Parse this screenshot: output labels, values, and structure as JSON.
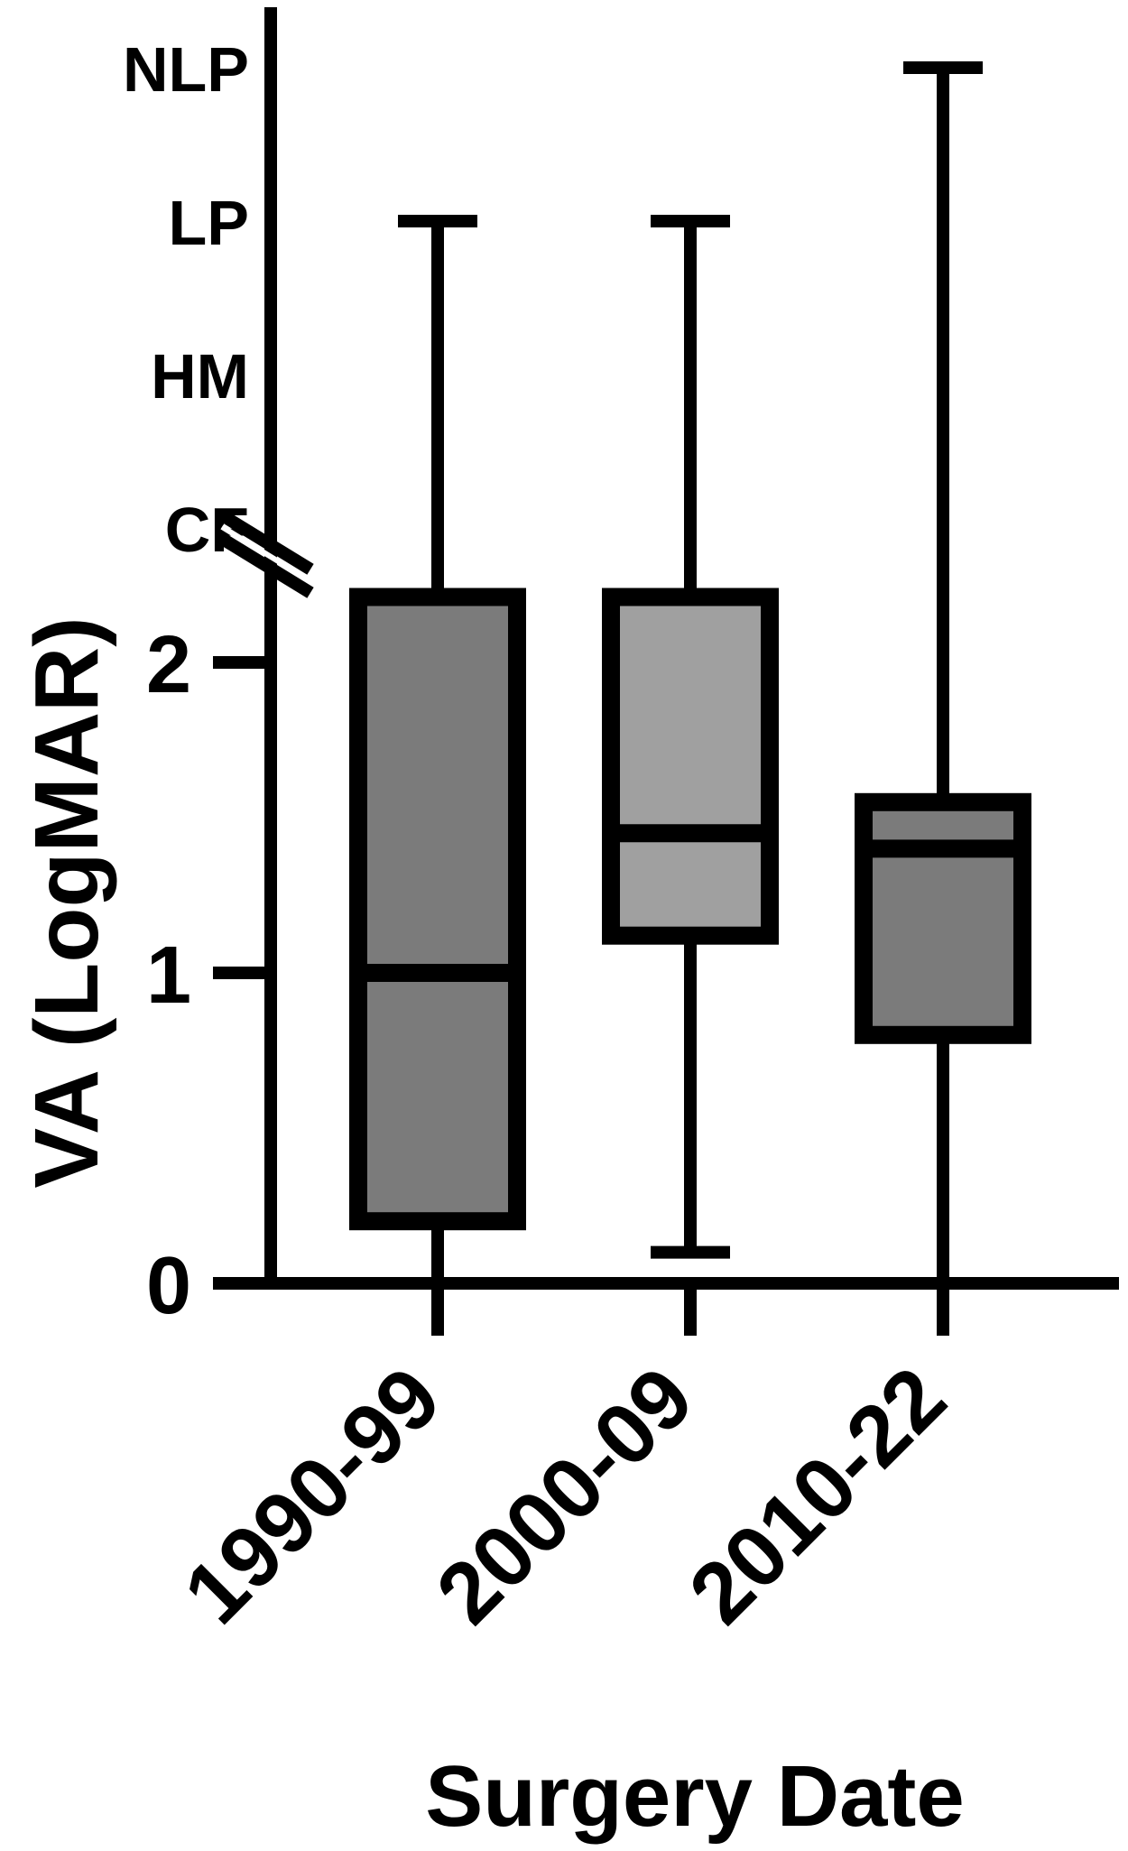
{
  "chart_data": {
    "type": "box",
    "ylabel": "VA (LogMAR)",
    "xlabel": "Surgery Date",
    "categories": [
      "1990-99",
      "2000-09",
      "2010-22"
    ],
    "y_numeric_ticks": [
      {
        "label": "0",
        "value": 0
      },
      {
        "label": "1",
        "value": 1
      },
      {
        "label": "2",
        "value": 2
      }
    ],
    "y_category_ticks": [
      {
        "label": "CF",
        "value": 2.6
      },
      {
        "label": "HM",
        "value": 3.1
      },
      {
        "label": "LP",
        "value": 3.6
      },
      {
        "label": "NLP",
        "value": 4.1
      }
    ],
    "ylim": [
      0,
      4.1
    ],
    "axis_break_at": 2.3,
    "boxes": [
      {
        "category": "1990-99",
        "min": 0,
        "q1": 0.2,
        "median": 1.0,
        "q3": 2.45,
        "max": 3.6,
        "fill": "#7b7b7b"
      },
      {
        "category": "2000-09",
        "min": 0.1,
        "q1": 1.12,
        "median": 1.45,
        "q3": 2.45,
        "max": 3.6,
        "fill": "#a0a0a0"
      },
      {
        "category": "2010-22",
        "min": 0,
        "q1": 0.8,
        "median": 1.4,
        "q3": 1.55,
        "max": 4.1,
        "fill": "#7b7b7b"
      }
    ],
    "grid": false,
    "legend": "none"
  }
}
